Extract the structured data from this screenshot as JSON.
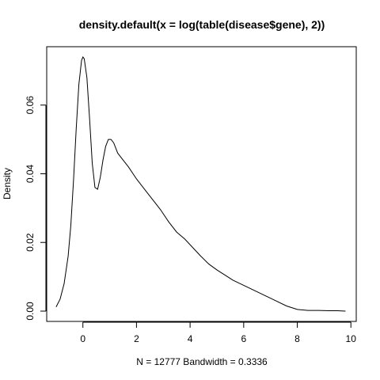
{
  "chart_data": {
    "type": "line",
    "title": "density.default(x = log(table(disease$gene), 2))",
    "xlabel": "N = 12777   Bandwidth = 0.3336",
    "ylabel": "Density",
    "xlim": [
      -1.35,
      10.2
    ],
    "ylim": [
      -0.003,
      0.077
    ],
    "x_ticks": [
      0,
      2,
      4,
      6,
      8,
      10
    ],
    "x_tick_labels": [
      "0",
      "2",
      "4",
      "6",
      "8",
      "10"
    ],
    "y_ticks": [
      0.0,
      0.02,
      0.04,
      0.06
    ],
    "y_tick_labels": [
      "0.00",
      "0.02",
      "0.04",
      "0.06"
    ],
    "grid": false,
    "series": [
      {
        "x": [
          -1.0,
          -0.85,
          -0.7,
          -0.55,
          -0.45,
          -0.35,
          -0.25,
          -0.15,
          -0.05,
          0.0,
          0.05,
          0.15,
          0.25,
          0.35,
          0.45,
          0.55,
          0.65,
          0.75,
          0.85,
          0.95,
          1.05,
          1.15,
          1.3,
          1.5,
          1.7,
          2.0,
          2.3,
          2.6,
          2.9,
          3.2,
          3.5,
          3.8,
          4.1,
          4.4,
          4.7,
          5.0,
          5.3,
          5.6,
          6.0,
          6.4,
          6.8,
          7.2,
          7.6,
          8.0,
          8.4,
          8.8,
          9.2,
          9.5,
          9.8
        ],
        "y": [
          0.0012,
          0.0035,
          0.008,
          0.016,
          0.025,
          0.038,
          0.053,
          0.066,
          0.073,
          0.074,
          0.0735,
          0.068,
          0.056,
          0.043,
          0.036,
          0.0355,
          0.039,
          0.044,
          0.048,
          0.05,
          0.05,
          0.049,
          0.046,
          0.044,
          0.042,
          0.0385,
          0.0355,
          0.0325,
          0.0295,
          0.026,
          0.023,
          0.021,
          0.0185,
          0.016,
          0.0137,
          0.012,
          0.0105,
          0.009,
          0.0075,
          0.006,
          0.0045,
          0.003,
          0.0015,
          0.0005,
          0.0002,
          0.0002,
          0.0001,
          0.0001,
          0.0
        ]
      }
    ]
  }
}
